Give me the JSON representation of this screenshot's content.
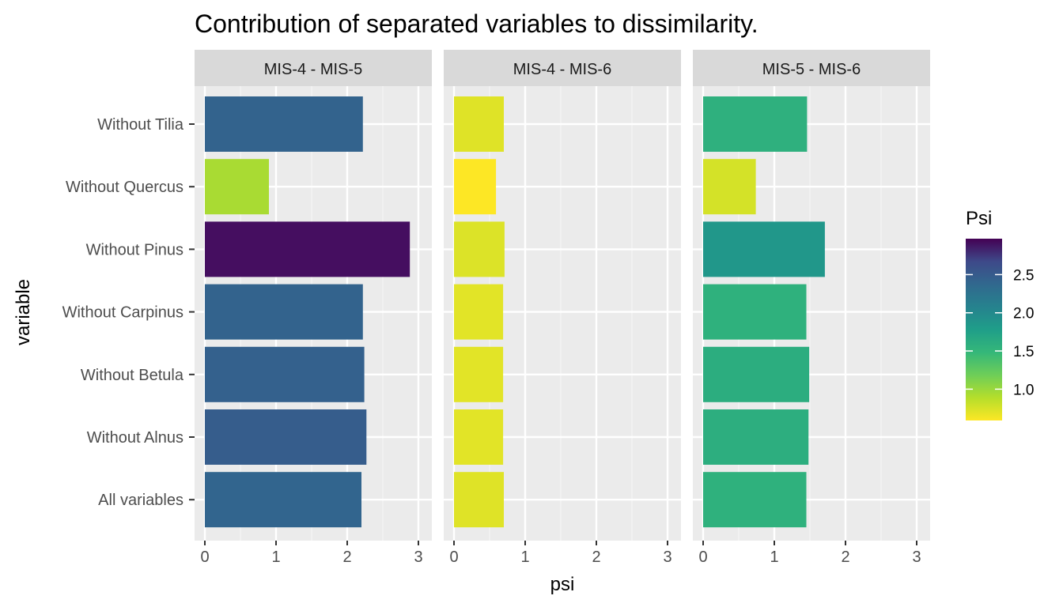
{
  "chart_data": {
    "type": "bar",
    "orientation": "horizontal",
    "title": "Contribution of separated variables to dissimilarity.",
    "xlabel": "psi",
    "ylabel": "variable",
    "categories": [
      "Without Tilia",
      "Without Quercus",
      "Without Pinus",
      "Without Carpinus",
      "Without Betula",
      "Without Alnus",
      "All variables"
    ],
    "xlim": [
      0,
      3
    ],
    "x_ticks": [
      "0",
      "1",
      "2",
      "3"
    ],
    "x_tick_values": [
      0,
      1,
      2,
      3
    ],
    "grid": true,
    "facets": [
      {
        "name": "MIS-4 - MIS-5",
        "values": [
          2.22,
          0.9,
          2.88,
          2.22,
          2.24,
          2.27,
          2.2
        ]
      },
      {
        "name": "MIS-4 - MIS-6",
        "values": [
          0.7,
          0.59,
          0.71,
          0.69,
          0.69,
          0.69,
          0.7
        ]
      },
      {
        "name": "MIS-5 - MIS-6",
        "values": [
          1.46,
          0.74,
          1.71,
          1.45,
          1.49,
          1.48,
          1.45
        ]
      }
    ],
    "legend": {
      "title": "Psi",
      "placement": "right",
      "range": [
        0.59,
        2.97
      ],
      "ticks": [
        "1.0",
        "1.5",
        "2.0",
        "2.5"
      ],
      "tick_values": [
        1.0,
        1.5,
        2.0,
        2.5
      ],
      "palette": "viridis-reversed"
    }
  }
}
